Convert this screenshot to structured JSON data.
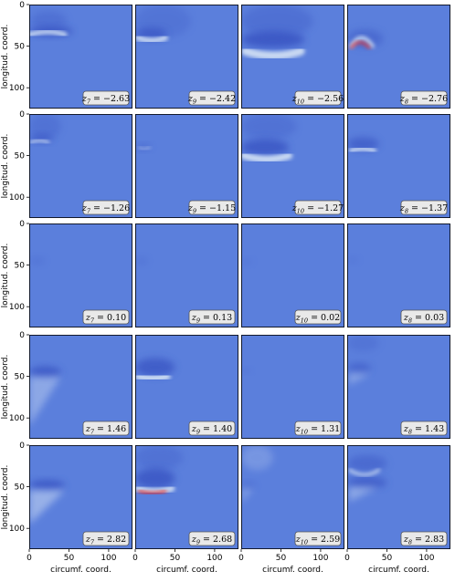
{
  "chart_data": {
    "type": "heatmap",
    "layout": {
      "rows": 5,
      "cols": 4
    },
    "xlabel": "circumf. coord.",
    "ylabel": "longitud. coord.",
    "xlim": [
      0,
      130
    ],
    "ylim": [
      125,
      0
    ],
    "x_ticks": [
      "0",
      "50",
      "100"
    ],
    "y_ticks": [
      "0",
      "50",
      "100"
    ],
    "colormap": "coolwarm",
    "colors": {
      "background": "#5b7fdc",
      "light": "#c9d9f2",
      "dark": "#3a56c4",
      "hot": "#e8322a"
    },
    "panels": [
      {
        "var": "7",
        "value": "−2.63"
      },
      {
        "var": "9",
        "value": "−2.42"
      },
      {
        "var": "10",
        "value": "−2.56"
      },
      {
        "var": "8",
        "value": "−2.76"
      },
      {
        "var": "7",
        "value": "−1.26"
      },
      {
        "var": "9",
        "value": "−1.15"
      },
      {
        "var": "10",
        "value": "−1.27"
      },
      {
        "var": "8",
        "value": "−1.37"
      },
      {
        "var": "7",
        "value": "0.10"
      },
      {
        "var": "9",
        "value": "0.13"
      },
      {
        "var": "10",
        "value": "0.02"
      },
      {
        "var": "8",
        "value": "0.03"
      },
      {
        "var": "7",
        "value": "1.46"
      },
      {
        "var": "9",
        "value": "1.40"
      },
      {
        "var": "10",
        "value": "1.31"
      },
      {
        "var": "8",
        "value": "1.43"
      },
      {
        "var": "7",
        "value": "2.82"
      },
      {
        "var": "9",
        "value": "2.68"
      },
      {
        "var": "10",
        "value": "2.59"
      },
      {
        "var": "8",
        "value": "2.83"
      }
    ]
  }
}
